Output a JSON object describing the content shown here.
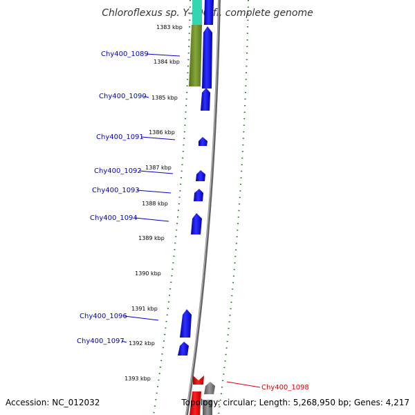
{
  "title": "Chloroflexus sp. Y-400-fl, complete genome",
  "footer": {
    "accession": "Accession: NC_012032",
    "summary": "Topology: circular; Length: 5,268,950 bp; Genes: 4,217"
  },
  "colors": {
    "tick": "#1a7a1a",
    "label_forward": "#0000cc",
    "label_highlight": "#dd0000",
    "gene_forward": "#0000ee",
    "gene_highlight": "#ee0000",
    "gene_grey": "#777777",
    "gene_olive": "#6e8b2a",
    "gene_teal": "#33d6b0",
    "backbone": "#8a8a8a"
  },
  "scale_labels": [
    "1383 kbp",
    "1384 kbp",
    "1385 kbp",
    "1386 kbp",
    "1387 kbp",
    "1388 kbp",
    "1389 kbp",
    "1390 kbp",
    "1391 kbp",
    "1392 kbp",
    "1393 kbp"
  ],
  "genes": [
    {
      "label": "Chy400_1089",
      "color": "label_forward"
    },
    {
      "label": "Chy400_1090",
      "color": "label_forward"
    },
    {
      "label": "Chy400_1091",
      "color": "label_forward"
    },
    {
      "label": "Chy400_1092",
      "color": "label_forward"
    },
    {
      "label": "Chy400_1093",
      "color": "label_forward"
    },
    {
      "label": "Chy400_1094",
      "color": "label_forward"
    },
    {
      "label": "Chy400_1096",
      "color": "label_forward"
    },
    {
      "label": "Chy400_1097",
      "color": "label_forward"
    },
    {
      "label": "Chy400_1098",
      "color": "label_highlight"
    }
  ]
}
